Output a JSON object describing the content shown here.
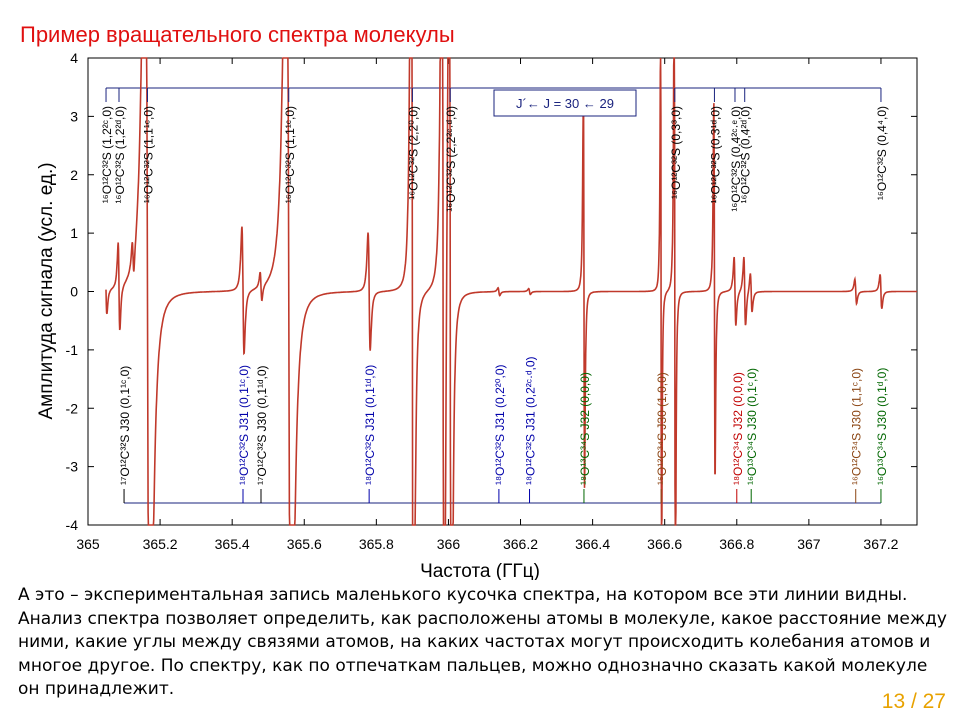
{
  "slide": {
    "title": "Пример вращательного спектра молекулы",
    "body": "А это – экспериментальная запись маленького кусочка спектра, на котором все эти линии видны. Анализ спектра позволяет определить, как расположены атомы в молекуле, какое расстояние между ними, какие углы между связями атомов, на каких частотах могут происходить колебания атомов и многое другое. По спектру, как по отпечаткам пальцев, можно однозначно сказать какой молекуле он принадлежит.",
    "page": "13 / 27"
  },
  "colors": {
    "trace": "#c0392b",
    "top_bracket": "#1a237e",
    "blue": "#0000aa",
    "green": "#006600",
    "brown": "#8b4513",
    "red": "#c00000",
    "slide_title": "#e01010",
    "page": "#e8a200"
  },
  "chart_data": {
    "type": "line",
    "xlabel": "Частота    (ГГц)",
    "ylabel": "Амплитуда сигнала    (усл. ед.)",
    "xlim": [
      365,
      367.3
    ],
    "ylim": [
      -4,
      4
    ],
    "xticks": [
      "365",
      "365.2",
      "365.4",
      "365.6",
      "365.8",
      "366",
      "366.2",
      "366.4",
      "366.6",
      "366.8",
      "367",
      "367.2"
    ],
    "yticks": [
      "-4",
      "-3",
      "-2",
      "-1",
      "0",
      "1",
      "2",
      "3",
      "4"
    ],
    "legend_label": "J´← J = 30 ← 29",
    "baseline": 0,
    "lines": [
      {
        "x": 365.05,
        "kind": "d1",
        "amp": 0.5,
        "w": 0.004
      },
      {
        "x": 365.086,
        "kind": "d1",
        "amp": 0.9,
        "w": 0.004
      },
      {
        "x": 365.125,
        "kind": "d1",
        "amp": 0.4,
        "w": 0.004
      },
      {
        "x": 365.165,
        "kind": "d1",
        "amp": 10,
        "w": 0.012
      },
      {
        "x": 365.43,
        "kind": "d1",
        "amp": 1.3,
        "w": 0.005
      },
      {
        "x": 365.48,
        "kind": "d1",
        "amp": 0.3,
        "w": 0.004
      },
      {
        "x": 365.557,
        "kind": "d1",
        "amp": 10,
        "w": 0.012
      },
      {
        "x": 365.78,
        "kind": "d1",
        "amp": 1.2,
        "w": 0.005
      },
      {
        "x": 365.9,
        "kind": "d1",
        "amp": 12,
        "w": 0.005
      },
      {
        "x": 365.985,
        "kind": "d1",
        "amp": 12,
        "w": 0.005
      },
      {
        "x": 366.005,
        "kind": "d1",
        "amp": 12,
        "w": 0.005
      },
      {
        "x": 366.14,
        "kind": "d1",
        "amp": 0.08,
        "w": 0.004
      },
      {
        "x": 366.225,
        "kind": "d1",
        "amp": 0.06,
        "w": 0.004
      },
      {
        "x": 366.376,
        "kind": "d1",
        "amp": 4.0,
        "w": 0.0028
      },
      {
        "x": 366.59,
        "kind": "d1",
        "amp": 5.8,
        "w": 0.0022
      },
      {
        "x": 366.628,
        "kind": "d1",
        "amp": 7.4,
        "w": 0.0025
      },
      {
        "x": 366.738,
        "kind": "d1",
        "amp": 3.9,
        "w": 0.0028
      },
      {
        "x": 366.795,
        "kind": "d1",
        "amp": 0.7,
        "w": 0.004
      },
      {
        "x": 366.822,
        "kind": "d1",
        "amp": 0.7,
        "w": 0.004
      },
      {
        "x": 366.84,
        "kind": "d1",
        "amp": 0.4,
        "w": 0.004
      },
      {
        "x": 367.13,
        "kind": "d1",
        "amp": 0.25,
        "w": 0.004
      },
      {
        "x": 367.2,
        "kind": "d1",
        "amp": 0.35,
        "w": 0.004
      }
    ],
    "top_labels": [
      {
        "x": 365.05,
        "text": "¹⁶O¹²C³²S (1,2²ᶜ,0)"
      },
      {
        "x": 365.086,
        "text": "¹⁶O¹²C³²S (1,2²ᵈ,0)"
      },
      {
        "x": 365.165,
        "text": "¹⁶O¹²C³²S (1,1¹ᶜ,0)"
      },
      {
        "x": 365.557,
        "text": "¹⁶O¹²C³²S (1,1¹ᶜ,0)"
      },
      {
        "x": 365.9,
        "text": "¹⁶O¹²C³²S (2,2⁰,0)"
      },
      {
        "x": 366.005,
        "text": "¹⁶O¹²C³²S (2,2²ᶜ·ᵈ,0)"
      },
      {
        "x": 366.628,
        "text": "¹⁶O¹²C³²S (0,3³,0)"
      },
      {
        "x": 366.738,
        "text": "¹⁶O¹²C³²S (0,3¹ᵈ,0)"
      },
      {
        "x": 366.795,
        "text": "¹⁶O¹²C³²S (0,4²ᶜ·ᵉ,0)"
      },
      {
        "x": 366.822,
        "text": "¹⁶O¹²C³²S (0,4²ᵈ,0)"
      },
      {
        "x": 367.2,
        "text": "¹⁶O¹²C³²S (0,4⁴,0)"
      }
    ],
    "bottom_labels": [
      {
        "x": 365.1,
        "text": "¹⁷O¹²C³²S J30 (0,1¹ᶜ,0)",
        "color": "#000000"
      },
      {
        "x": 365.43,
        "text": "¹⁸O¹²C³²S J31 (0,1¹ᶜ,0)",
        "color": "#0000aa"
      },
      {
        "x": 365.48,
        "text": "¹⁷O¹²C³²S J30 (0,1¹ᵈ,0)",
        "color": "#000000"
      },
      {
        "x": 365.78,
        "text": "¹⁸O¹²C³²S J31 (0,1¹ᵈ,0)",
        "color": "#0000aa"
      },
      {
        "x": 366.14,
        "text": "¹⁸O¹²C³²S J31 (0,2²⁰,0)",
        "color": "#0000aa"
      },
      {
        "x": 366.225,
        "text": "¹⁸O¹²C³²S J31 (0,2²ᶜ·ᵈ,0)",
        "color": "#0000aa"
      },
      {
        "x": 366.376,
        "text": "¹⁸O¹³C³⁴S J32 (0,0,0)",
        "color": "#006600"
      },
      {
        "x": 366.59,
        "text": "¹⁶O¹²C³⁴S J30 (1,0,0)",
        "color": "#8b4513"
      },
      {
        "x": 366.8,
        "text": "¹⁸O¹²C³⁴S J32 (0,0,0)",
        "color": "#c00000"
      },
      {
        "x": 366.84,
        "text": "¹⁶O¹³C³⁴S J30 (0,1ᶜ,0)",
        "color": "#006600"
      },
      {
        "x": 367.13,
        "text": "¹⁶O¹²C³⁴S J30 (1,1ᶜ,0)",
        "color": "#8b4513"
      },
      {
        "x": 367.2,
        "text": "¹⁶O¹³C³⁴S J30 (0,1ᵈ,0)",
        "color": "#006600"
      }
    ]
  }
}
